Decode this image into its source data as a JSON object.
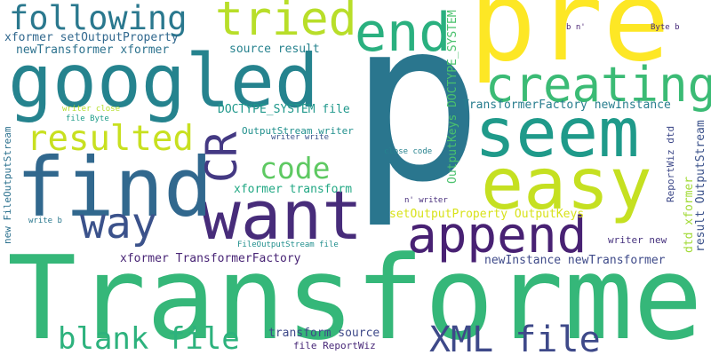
{
  "words": [
    {
      "text": "Transformer",
      "color": "#35b779"
    },
    {
      "text": "p",
      "color": "#2a768e"
    },
    {
      "text": "pre",
      "color": "#fde725"
    },
    {
      "text": "googled",
      "color": "#25838e"
    },
    {
      "text": "want",
      "color": "#472c7a"
    },
    {
      "text": "find",
      "color": "#31688e"
    },
    {
      "text": "seem",
      "color": "#1f9a8a"
    },
    {
      "text": "easy",
      "color": "#c5e021"
    },
    {
      "text": "append",
      "color": "#482173"
    },
    {
      "text": "creating",
      "color": "#3bbb75"
    },
    {
      "text": "following",
      "color": "#2a788e"
    },
    {
      "text": "tried",
      "color": "#b8de29"
    },
    {
      "text": "end",
      "color": "#2ab07f"
    },
    {
      "text": "resulted",
      "color": "#c8e020"
    },
    {
      "text": "CR",
      "color": "#443983"
    },
    {
      "text": "code",
      "color": "#5ec962"
    },
    {
      "text": "way",
      "color": "#3b528b"
    },
    {
      "text": "blank file",
      "color": "#2db27d"
    },
    {
      "text": "XML file",
      "color": "#3e4989"
    },
    {
      "text": "xformer setOutputProperty",
      "color": "#31688e"
    },
    {
      "text": "newTransformer xformer",
      "color": "#2c728e"
    },
    {
      "text": "source result",
      "color": "#26828e"
    },
    {
      "text": "DOCTYPE_SYSTEM file",
      "color": "#1f988b"
    },
    {
      "text": "TransformerFactory newInstance",
      "color": "#287d8e"
    },
    {
      "text": "OutputStream writer",
      "color": "#21908d"
    },
    {
      "text": "writer write",
      "color": "#3b528b"
    },
    {
      "text": "writer close",
      "color": "#b5de2b"
    },
    {
      "text": "file Byte",
      "color": "#1e9c89"
    },
    {
      "text": "close code",
      "color": "#26828e"
    },
    {
      "text": "xformer transform",
      "color": "#22a884"
    },
    {
      "text": "setOutputProperty OutputKeys",
      "color": "#d8e219"
    },
    {
      "text": "n' writer",
      "color": "#472d7b"
    },
    {
      "text": "writer new",
      "color": "#46327e"
    },
    {
      "text": "xformer TransformerFactory",
      "color": "#482475"
    },
    {
      "text": "newInstance newTransformer",
      "color": "#3e4a89"
    },
    {
      "text": "FileOutputStream file",
      "color": "#218f8d"
    },
    {
      "text": "transform source",
      "color": "#3e4989"
    },
    {
      "text": "file ReportWiz",
      "color": "#482878"
    },
    {
      "text": "write b",
      "color": "#2a788e"
    },
    {
      "text": "b n'",
      "color": "#482173"
    },
    {
      "text": "Byte b",
      "color": "#472a7a"
    },
    {
      "text": "OutputKeys DOCTYPE_SYSTEM",
      "color": "#4ac16d"
    },
    {
      "text": "ReportWiz dtd",
      "color": "#3e4989"
    },
    {
      "text": "result OutputStream",
      "color": "#3b528b"
    },
    {
      "text": "dtd xformer",
      "color": "#a2da37"
    },
    {
      "text": "new FileOutputStream",
      "color": "#2c718e"
    }
  ]
}
